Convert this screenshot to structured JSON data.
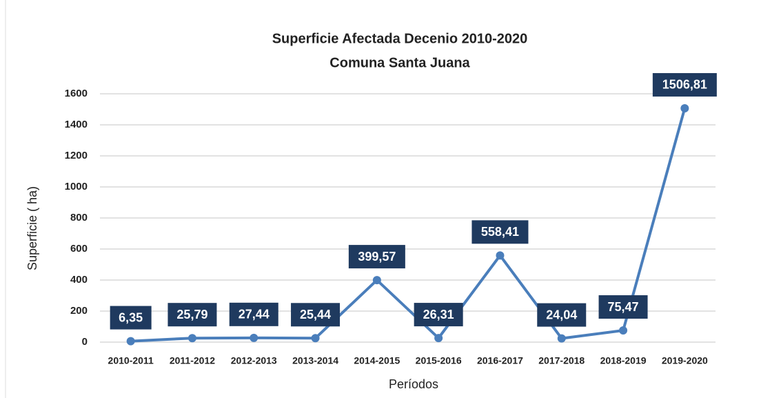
{
  "chart_data": {
    "type": "line",
    "title": "Superficie Afectada Decenio 2010-2020",
    "subtitle": "Comuna Santa Juana",
    "x_label": "Períodos",
    "y_label": "Superficie ( ha)",
    "categories": [
      "2010-2011",
      "2011-2012",
      "2012-2013",
      "2013-2014",
      "2014-2015",
      "2015-2016",
      "2016-2017",
      "2017-2018",
      "2018-2019",
      "2019-2020"
    ],
    "series": [
      {
        "name": "Superficie",
        "color": "#4a7ebb",
        "values": [
          6.35,
          25.79,
          27.44,
          25.44,
          399.57,
          26.31,
          558.41,
          24.04,
          75.47,
          1506.81
        ],
        "value_labels": [
          "6,35",
          "25,79",
          "27,44",
          "25,44",
          "399,57",
          "26,31",
          "558,41",
          "24,04",
          "75,47",
          "1506,81"
        ]
      }
    ],
    "ylim": [
      0,
      1600
    ],
    "yticks": [
      0,
      200,
      400,
      600,
      800,
      1000,
      1200,
      1400,
      1600
    ],
    "grid": true
  }
}
